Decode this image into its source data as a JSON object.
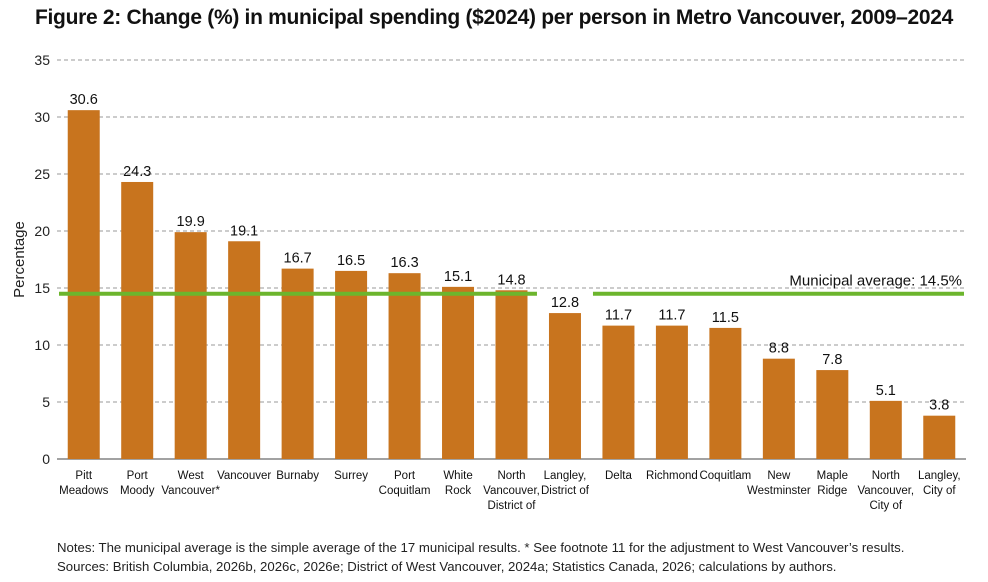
{
  "chart_data": {
    "type": "bar",
    "title": "Figure 2: Change (%) in municipal spending ($2024) per person in Metro Vancouver, 2009–2024",
    "ylabel": "Percentage",
    "xlabel": "",
    "ylim": [
      0,
      35
    ],
    "yticks": [
      0,
      5,
      10,
      15,
      20,
      25,
      30,
      35
    ],
    "grid": "horizontal-dashed",
    "categories": [
      [
        "Pitt",
        "Meadows"
      ],
      [
        "Port",
        "Moody"
      ],
      [
        "West",
        "Vancouver*"
      ],
      [
        "Vancouver"
      ],
      [
        "Burnaby"
      ],
      [
        "Surrey"
      ],
      [
        "Port",
        "Coquitlam"
      ],
      [
        "White",
        "Rock"
      ],
      [
        "North",
        "Vancouver,",
        "District of"
      ],
      [
        "Langley,",
        "District of"
      ],
      [
        "Delta"
      ],
      [
        "Richmond"
      ],
      [
        "Coquitlam"
      ],
      [
        "New",
        "Westminster"
      ],
      [
        "Maple",
        "Ridge"
      ],
      [
        "North",
        "Vancouver,",
        "City of"
      ],
      [
        "Langley,",
        "City of"
      ]
    ],
    "values": [
      30.6,
      24.3,
      19.9,
      19.1,
      16.7,
      16.5,
      16.3,
      15.1,
      14.8,
      12.8,
      11.7,
      11.7,
      11.5,
      8.8,
      7.8,
      5.1,
      3.8
    ],
    "value_labels": [
      "30.6",
      "24.3",
      "19.9",
      "19.1",
      "16.7",
      "16.5",
      "16.3",
      "15.1",
      "14.8",
      "12.8",
      "11.7",
      "11.7",
      "11.5",
      "8.8",
      "7.8",
      "5.1",
      "3.8"
    ],
    "reference_line": {
      "value": 14.5,
      "label": "Municipal average: 14.5%"
    },
    "colors": {
      "bar": "#c8741e",
      "average_line": "#6cb52d",
      "grid": "#9a9a9a",
      "axis": "#444444"
    }
  },
  "notes": [
    "Notes: The municipal average is the simple average of the 17 municipal results. * See footnote 11 for the adjustment to West Vancouver’s results.",
    "Sources: British Columbia, 2026b, 2026c, 2026e; District of West Vancouver, 2024a; Statistics Canada, 2026; calculations by authors."
  ]
}
